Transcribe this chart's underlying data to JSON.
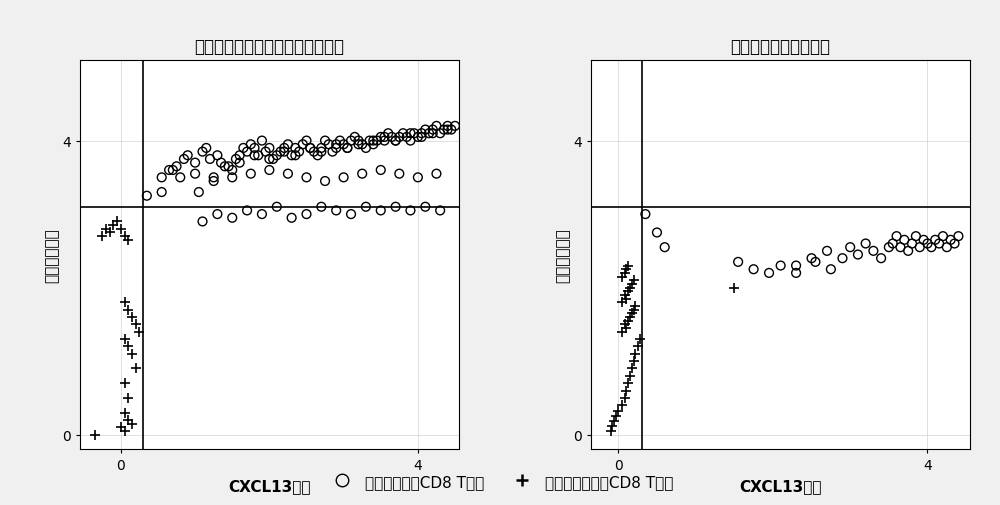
{
  "title1": "未治疗以及治疗后无响应肿瘤样本",
  "title2": "治疗后有响应肿瘤样本",
  "xlabel": "CXCL13表达",
  "ylabel": "耗竭信号强度",
  "legend_circle": "癌细胞杀伤性CD8 T细胞",
  "legend_plus": "非癌细胞杀伤性CD8 T细胞",
  "vline": 0.3,
  "hline": 3.1,
  "xlim1": [
    -0.55,
    4.55
  ],
  "ylim1": [
    -0.2,
    5.1
  ],
  "xlim2": [
    -0.35,
    4.55
  ],
  "ylim2": [
    -0.2,
    5.1
  ],
  "xticks1": [
    0,
    4
  ],
  "yticks1": [
    0,
    4
  ],
  "xticks2": [
    0,
    4
  ],
  "yticks2": [
    0,
    4
  ],
  "plot1_circles_x": [
    0.35,
    0.55,
    0.7,
    0.85,
    0.55,
    0.75,
    0.9,
    1.0,
    1.1,
    1.15,
    1.2,
    1.3,
    1.35,
    1.4,
    1.5,
    1.55,
    1.6,
    1.65,
    1.7,
    1.75,
    1.8,
    1.85,
    1.9,
    1.95,
    2.0,
    2.05,
    2.1,
    2.15,
    2.2,
    2.25,
    2.3,
    2.35,
    2.4,
    2.45,
    2.5,
    2.55,
    2.6,
    2.65,
    2.7,
    2.75,
    2.8,
    2.85,
    2.9,
    2.95,
    3.0,
    3.05,
    3.1,
    3.15,
    3.2,
    3.25,
    3.3,
    3.35,
    3.4,
    3.45,
    3.5,
    3.55,
    3.6,
    3.65,
    3.7,
    3.75,
    3.8,
    3.85,
    3.9,
    3.95,
    4.0,
    4.05,
    4.1,
    4.15,
    4.2,
    4.25,
    4.3,
    4.35,
    4.4,
    4.45,
    4.5,
    1.05,
    1.25,
    1.45,
    1.6,
    1.8,
    2.0,
    2.2,
    2.35,
    2.55,
    2.7,
    2.9,
    3.05,
    3.2,
    3.4,
    3.55,
    3.7,
    3.9,
    4.05,
    4.2,
    4.4,
    1.1,
    1.3,
    1.5,
    1.7,
    1.9,
    2.1,
    2.3,
    2.5,
    2.7,
    2.9,
    3.1,
    3.3,
    3.5,
    3.7,
    3.9,
    4.1,
    4.3,
    0.65,
    0.8,
    1.0,
    1.25,
    1.5,
    1.75,
    2.0,
    2.25,
    2.5,
    2.75,
    3.0,
    3.25,
    3.5,
    3.75,
    4.0,
    4.25
  ],
  "plot1_circles_y": [
    3.25,
    3.5,
    3.6,
    3.75,
    3.3,
    3.65,
    3.8,
    3.7,
    3.85,
    3.9,
    3.75,
    3.8,
    3.7,
    3.65,
    3.6,
    3.75,
    3.8,
    3.9,
    3.85,
    3.95,
    3.9,
    3.8,
    4.0,
    3.85,
    3.9,
    3.75,
    3.8,
    3.85,
    3.9,
    3.95,
    3.8,
    3.9,
    3.85,
    3.95,
    4.0,
    3.9,
    3.85,
    3.8,
    3.9,
    4.0,
    3.95,
    3.85,
    3.9,
    4.0,
    3.95,
    3.9,
    4.0,
    4.05,
    4.0,
    3.95,
    3.9,
    4.0,
    3.95,
    4.0,
    4.05,
    4.0,
    4.1,
    4.05,
    4.0,
    4.05,
    4.1,
    4.05,
    4.0,
    4.1,
    4.05,
    4.1,
    4.15,
    4.1,
    4.15,
    4.2,
    4.1,
    4.15,
    4.2,
    4.15,
    4.2,
    3.3,
    3.5,
    3.65,
    3.7,
    3.8,
    3.75,
    3.85,
    3.8,
    3.9,
    3.85,
    3.95,
    3.9,
    3.95,
    4.0,
    4.05,
    4.0,
    4.1,
    4.05,
    4.1,
    4.15,
    2.9,
    3.0,
    2.95,
    3.05,
    3.0,
    3.1,
    2.95,
    3.0,
    3.1,
    3.05,
    3.0,
    3.1,
    3.05,
    3.1,
    3.05,
    3.1,
    3.05,
    3.6,
    3.5,
    3.55,
    3.45,
    3.5,
    3.55,
    3.6,
    3.55,
    3.5,
    3.45,
    3.5,
    3.55,
    3.6,
    3.55,
    3.5,
    3.55
  ],
  "plot1_plus_x": [
    -0.35,
    -0.25,
    -0.2,
    -0.15,
    -0.1,
    -0.05,
    0.0,
    0.05,
    0.1,
    0.05,
    0.1,
    0.15,
    0.2,
    0.25,
    0.05,
    0.1,
    0.15,
    0.2,
    0.05,
    0.1,
    0.05,
    0.1,
    0.15,
    0.0,
    0.05
  ],
  "plot1_plus_y": [
    0.0,
    2.7,
    2.8,
    2.75,
    2.85,
    2.9,
    2.8,
    2.7,
    2.65,
    1.8,
    1.7,
    1.6,
    1.5,
    1.4,
    1.3,
    1.2,
    1.1,
    0.9,
    0.7,
    0.5,
    0.3,
    0.2,
    0.15,
    0.1,
    0.05
  ],
  "plot2_circles_x": [
    0.35,
    0.5,
    0.6,
    1.55,
    1.75,
    1.95,
    2.3,
    2.5,
    2.7,
    2.9,
    3.0,
    3.1,
    3.2,
    3.3,
    3.4,
    3.5,
    3.55,
    3.6,
    3.65,
    3.7,
    3.75,
    3.8,
    3.85,
    3.9,
    3.95,
    4.0,
    4.05,
    4.1,
    4.15,
    4.2,
    4.25,
    4.3,
    4.35,
    4.4,
    2.1,
    2.3,
    2.55,
    2.75
  ],
  "plot2_circles_y": [
    3.0,
    2.75,
    2.55,
    2.35,
    2.25,
    2.2,
    2.3,
    2.4,
    2.5,
    2.4,
    2.55,
    2.45,
    2.6,
    2.5,
    2.4,
    2.55,
    2.6,
    2.7,
    2.55,
    2.65,
    2.5,
    2.6,
    2.7,
    2.55,
    2.65,
    2.6,
    2.55,
    2.65,
    2.6,
    2.7,
    2.55,
    2.65,
    2.6,
    2.7,
    2.3,
    2.2,
    2.35,
    2.25
  ],
  "plot2_plus_x": [
    -0.1,
    -0.08,
    -0.05,
    -0.03,
    0.0,
    0.05,
    0.08,
    0.1,
    0.12,
    0.15,
    0.18,
    0.2,
    0.22,
    0.25,
    0.28,
    0.05,
    0.1,
    0.08,
    0.12,
    0.15,
    0.18,
    0.2,
    0.22,
    0.05,
    0.1,
    0.08,
    0.12,
    0.15,
    0.18,
    0.2,
    0.05,
    0.08,
    0.1,
    0.12,
    1.5
  ],
  "plot2_plus_y": [
    0.05,
    0.12,
    0.18,
    0.25,
    0.32,
    0.4,
    0.5,
    0.6,
    0.7,
    0.8,
    0.9,
    1.0,
    1.1,
    1.2,
    1.3,
    1.4,
    1.45,
    1.5,
    1.55,
    1.6,
    1.65,
    1.7,
    1.75,
    1.8,
    1.85,
    1.9,
    1.95,
    2.0,
    2.05,
    2.1,
    2.15,
    2.2,
    2.25,
    2.3,
    2.0
  ],
  "bg_color": "#f0f0f0",
  "plot_bg": "#ffffff",
  "marker_color": "black",
  "circle_size": 40,
  "plus_size": 60,
  "line_color": "black",
  "line_width": 1.2,
  "title_fontsize": 12,
  "label_fontsize": 11,
  "tick_fontsize": 10,
  "legend_fontsize": 11
}
